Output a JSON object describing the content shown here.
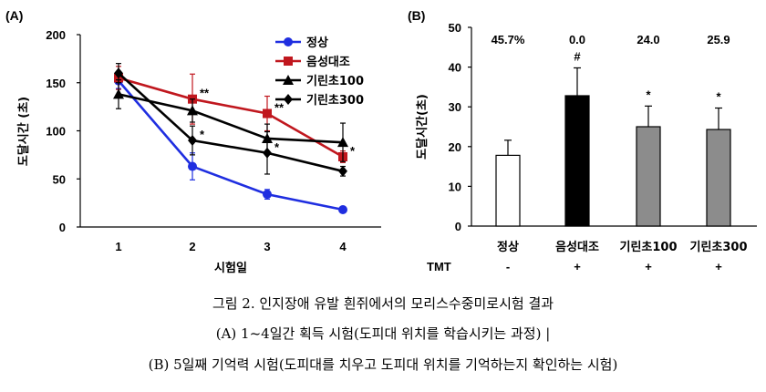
{
  "chart_data": [
    {
      "panel": "(A)",
      "type": "line",
      "xlabel": "시험일",
      "ylabel": "도달시간 (초)",
      "x": [
        1,
        2,
        3,
        4
      ],
      "xticks": [
        "1",
        "2",
        "3",
        "4"
      ],
      "ylim": [
        0,
        200
      ],
      "yticks": [
        "0",
        "50",
        "100",
        "150",
        "200"
      ],
      "legend_position": "top-right",
      "series": [
        {
          "name": "정상",
          "color": "#1f2ee0",
          "marker": "circle",
          "values": [
            152,
            63,
            34,
            18
          ],
          "errors": [
            8,
            14,
            5,
            3
          ]
        },
        {
          "name": "음성대조",
          "color": "#c0171e",
          "marker": "square",
          "values": [
            155,
            133,
            118,
            73
          ],
          "errors": [
            12,
            26,
            18,
            6
          ]
        },
        {
          "name": "기린초100",
          "color": "#000000",
          "marker": "triangle",
          "values": [
            138,
            121,
            92,
            88
          ],
          "errors": [
            15,
            12,
            15,
            20
          ]
        },
        {
          "name": "기린초300",
          "color": "#000000",
          "marker": "diamond",
          "values": [
            160,
            90,
            77,
            58
          ],
          "errors": [
            10,
            15,
            22,
            5
          ]
        }
      ],
      "annotations": [
        {
          "text": "**",
          "x": 2,
          "y": 133
        },
        {
          "text": "**",
          "x": 3,
          "y": 118
        },
        {
          "text": "*",
          "x": 2,
          "y": 90
        },
        {
          "text": "*",
          "x": 3,
          "y": 77
        },
        {
          "text": "*",
          "x": 4,
          "y": 73
        }
      ]
    },
    {
      "panel": "(B)",
      "type": "bar",
      "ylabel": "도달시간(초)",
      "categories": [
        "정상",
        "음성대조",
        "기린초100",
        "기린초300"
      ],
      "values": [
        17.8,
        32.8,
        25.0,
        24.3
      ],
      "errors": [
        3.8,
        7.0,
        5.2,
        5.4
      ],
      "bar_colors": [
        "#ffffff",
        "#000000",
        "#8c8c8c",
        "#8c8c8c"
      ],
      "ylim": [
        0,
        50
      ],
      "yticks": [
        "0",
        "10",
        "20",
        "30",
        "40",
        "50"
      ],
      "percent_labels": [
        "45.7%",
        "0.0",
        "24.0",
        "25.9"
      ],
      "sig_labels": [
        "",
        "#",
        "*",
        "*"
      ],
      "treatment_label": "TMT",
      "treatment_values": [
        "-",
        "+",
        "+",
        "+"
      ]
    }
  ],
  "caption": {
    "line1": "그림 2. 인지장애 유발 흰쥐에서의 모리스수중미로시험 결과",
    "line2": "(A) 1~4일간 획득 시험(도피대 위치를 학습시키는 과정) |",
    "line3": "(B) 5일째 기억력 시험(도피대를 치우고 도피대 위치를 기억하는지 확인하는 시험)"
  }
}
